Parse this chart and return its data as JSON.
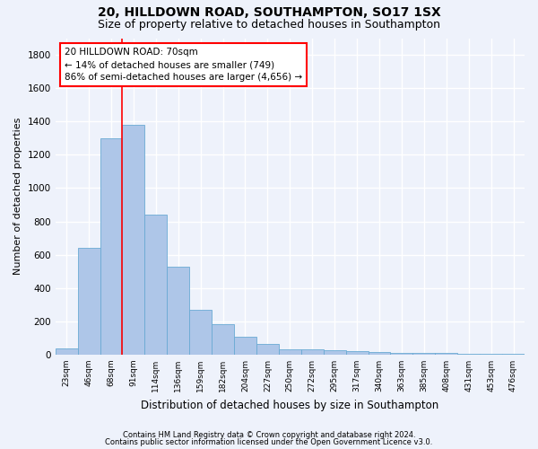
{
  "title1": "20, HILLDOWN ROAD, SOUTHAMPTON, SO17 1SX",
  "title2": "Size of property relative to detached houses in Southampton",
  "xlabel": "Distribution of detached houses by size in Southampton",
  "ylabel": "Number of detached properties",
  "categories": [
    "23sqm",
    "46sqm",
    "68sqm",
    "91sqm",
    "114sqm",
    "136sqm",
    "159sqm",
    "182sqm",
    "204sqm",
    "227sqm",
    "250sqm",
    "272sqm",
    "295sqm",
    "317sqm",
    "340sqm",
    "363sqm",
    "385sqm",
    "408sqm",
    "431sqm",
    "453sqm",
    "476sqm"
  ],
  "values": [
    40,
    640,
    1300,
    1380,
    840,
    530,
    270,
    185,
    105,
    65,
    30,
    30,
    25,
    20,
    15,
    10,
    10,
    8,
    5,
    5,
    5
  ],
  "bar_color": "#aec6e8",
  "bar_edge_color": "#6aaad4",
  "red_line_x": 2.5,
  "annotation_text": "20 HILLDOWN ROAD: 70sqm\n← 14% of detached houses are smaller (749)\n86% of semi-detached houses are larger (4,656) →",
  "annotation_box_color": "white",
  "annotation_box_edge_color": "red",
  "ylim": [
    0,
    1900
  ],
  "yticks": [
    0,
    200,
    400,
    600,
    800,
    1000,
    1200,
    1400,
    1600,
    1800
  ],
  "footer1": "Contains HM Land Registry data © Crown copyright and database right 2024.",
  "footer2": "Contains public sector information licensed under the Open Government Licence v3.0.",
  "bg_color": "#eef2fb",
  "grid_color": "white",
  "title1_fontsize": 10,
  "title2_fontsize": 9,
  "xlabel_fontsize": 8.5,
  "ylabel_fontsize": 8
}
